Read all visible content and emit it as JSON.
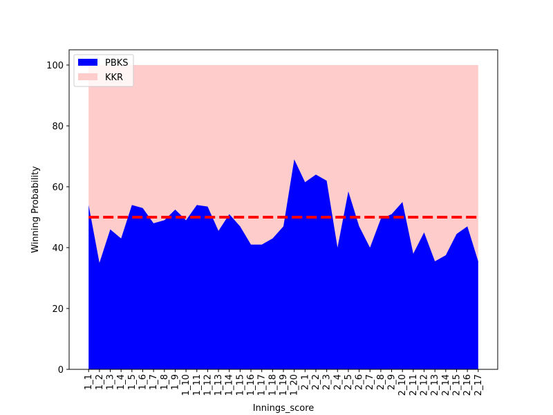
{
  "chart_data": {
    "type": "area",
    "title": "",
    "xlabel": "Innings_score",
    "ylabel": "Winning Probability",
    "ylim": [
      0,
      105
    ],
    "yticks": [
      0,
      20,
      40,
      60,
      80,
      100
    ],
    "grid": false,
    "legend_placement": "top-left",
    "reference_line": {
      "y": 50,
      "color": "#ff0000",
      "style": "dashed"
    },
    "categories": [
      "1_1",
      "1_2",
      "1_3",
      "1_4",
      "1_5",
      "1_6",
      "1_7",
      "1_8",
      "1_9",
      "1_10",
      "1_11",
      "1_12",
      "1_13",
      "1_14",
      "1_15",
      "1_16",
      "1_17",
      "1_18",
      "1_19",
      "1_20",
      "2_1",
      "2_2",
      "2_3",
      "2_4",
      "2_5",
      "2_6",
      "2_7",
      "2_8",
      "2_9",
      "2_10",
      "2_11",
      "2_12",
      "2_13",
      "2_14",
      "2_15",
      "2_16",
      "2_17"
    ],
    "series": [
      {
        "name": "PBKS",
        "color": "#0000ff",
        "values": [
          54,
          35,
          46,
          43,
          54,
          53,
          48,
          49,
          52.5,
          49,
          54,
          53.5,
          45.5,
          51,
          47,
          41,
          41,
          43,
          47,
          69,
          61.5,
          64,
          62,
          40,
          58.5,
          47,
          40,
          49.5,
          51,
          55,
          38,
          45,
          35.5,
          37.5,
          44.5,
          47,
          35.5
        ]
      },
      {
        "name": "KKR",
        "color": "#ffcccc",
        "values": [
          46,
          65,
          54,
          57,
          46,
          47,
          52,
          51,
          47.5,
          51,
          46,
          46.5,
          54.5,
          49,
          53,
          59,
          59,
          57,
          53,
          31,
          38.5,
          36,
          38,
          60,
          41.5,
          53,
          60,
          50.5,
          49,
          45,
          62,
          55,
          64.5,
          62.5,
          55.5,
          53,
          64.5
        ]
      }
    ]
  }
}
